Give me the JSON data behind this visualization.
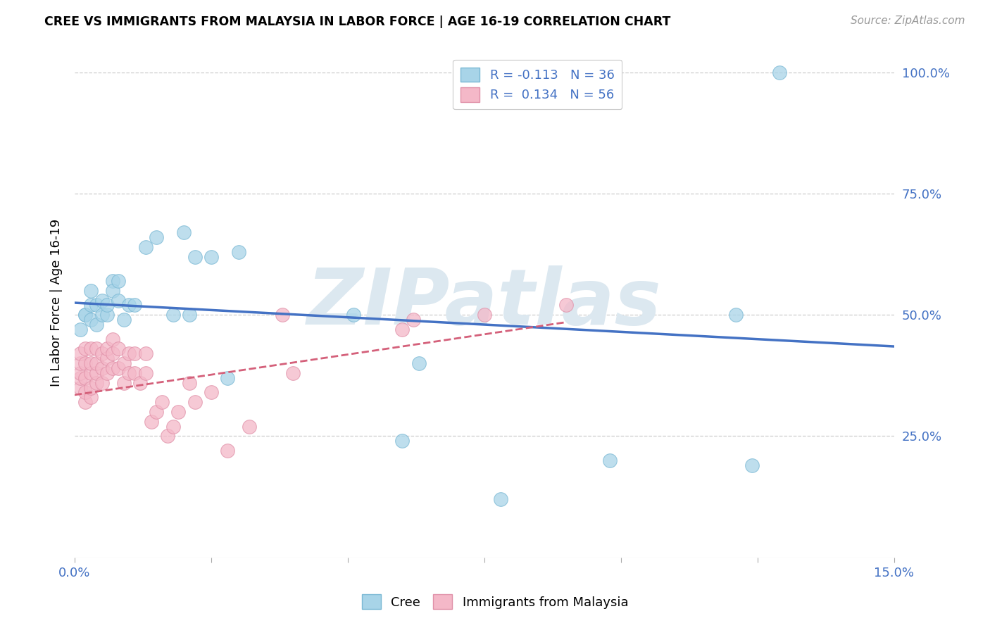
{
  "title": "CREE VS IMMIGRANTS FROM MALAYSIA IN LABOR FORCE | AGE 16-19 CORRELATION CHART",
  "source": "Source: ZipAtlas.com",
  "ylabel": "In Labor Force | Age 16-19",
  "x_min": 0.0,
  "x_max": 0.15,
  "y_min": 0.0,
  "y_max": 1.05,
  "x_ticks": [
    0.0,
    0.025,
    0.05,
    0.075,
    0.1,
    0.125,
    0.15
  ],
  "y_ticks_right": [
    0.25,
    0.5,
    0.75,
    1.0
  ],
  "y_tick_labels_right": [
    "25.0%",
    "50.0%",
    "75.0%",
    "100.0%"
  ],
  "cree_label": "Cree",
  "malaysia_label": "Immigrants from Malaysia",
  "R_cree": -0.113,
  "N_cree": 36,
  "R_malaysia": 0.134,
  "N_malaysia": 56,
  "cree_color": "#a8d4e8",
  "cree_edge": "#7ab8d4",
  "malaysia_color": "#f4b8c8",
  "malaysia_edge": "#e090a8",
  "trend_cree_color": "#4472c4",
  "trend_malaysia_color": "#d4607a",
  "watermark": "ZIPatlas",
  "watermark_color": "#dce8f0",
  "background_color": "#ffffff",
  "grid_color": "#cccccc",
  "cree_x": [
    0.001,
    0.002,
    0.002,
    0.003,
    0.003,
    0.003,
    0.004,
    0.004,
    0.005,
    0.005,
    0.006,
    0.006,
    0.007,
    0.007,
    0.008,
    0.008,
    0.009,
    0.01,
    0.011,
    0.013,
    0.015,
    0.018,
    0.02,
    0.021,
    0.022,
    0.025,
    0.028,
    0.03,
    0.051,
    0.06,
    0.063,
    0.078,
    0.098,
    0.121,
    0.124,
    0.129
  ],
  "cree_y": [
    0.47,
    0.5,
    0.5,
    0.49,
    0.52,
    0.55,
    0.48,
    0.52,
    0.5,
    0.53,
    0.5,
    0.52,
    0.57,
    0.55,
    0.57,
    0.53,
    0.49,
    0.52,
    0.52,
    0.64,
    0.66,
    0.5,
    0.67,
    0.5,
    0.62,
    0.62,
    0.37,
    0.63,
    0.5,
    0.24,
    0.4,
    0.12,
    0.2,
    0.5,
    0.19,
    1.0
  ],
  "malaysia_x": [
    0.001,
    0.001,
    0.001,
    0.001,
    0.001,
    0.002,
    0.002,
    0.002,
    0.002,
    0.002,
    0.003,
    0.003,
    0.003,
    0.003,
    0.003,
    0.004,
    0.004,
    0.004,
    0.004,
    0.005,
    0.005,
    0.005,
    0.006,
    0.006,
    0.006,
    0.007,
    0.007,
    0.007,
    0.008,
    0.008,
    0.009,
    0.009,
    0.01,
    0.01,
    0.011,
    0.011,
    0.012,
    0.013,
    0.013,
    0.014,
    0.015,
    0.016,
    0.017,
    0.018,
    0.019,
    0.021,
    0.022,
    0.025,
    0.028,
    0.032,
    0.038,
    0.04,
    0.06,
    0.062,
    0.075,
    0.09
  ],
  "malaysia_y": [
    0.35,
    0.37,
    0.38,
    0.4,
    0.42,
    0.32,
    0.34,
    0.37,
    0.4,
    0.43,
    0.33,
    0.35,
    0.38,
    0.4,
    0.43,
    0.36,
    0.38,
    0.4,
    0.43,
    0.36,
    0.39,
    0.42,
    0.38,
    0.41,
    0.43,
    0.39,
    0.42,
    0.45,
    0.39,
    0.43,
    0.36,
    0.4,
    0.38,
    0.42,
    0.38,
    0.42,
    0.36,
    0.38,
    0.42,
    0.28,
    0.3,
    0.32,
    0.25,
    0.27,
    0.3,
    0.36,
    0.32,
    0.34,
    0.22,
    0.27,
    0.5,
    0.38,
    0.47,
    0.49,
    0.5,
    0.52
  ],
  "trend_cree_x0": 0.0,
  "trend_cree_y0": 0.525,
  "trend_cree_x1": 0.15,
  "trend_cree_y1": 0.435,
  "trend_malaysia_x0": 0.0,
  "trend_malaysia_y0": 0.335,
  "trend_malaysia_x1": 0.09,
  "trend_malaysia_y1": 0.485
}
